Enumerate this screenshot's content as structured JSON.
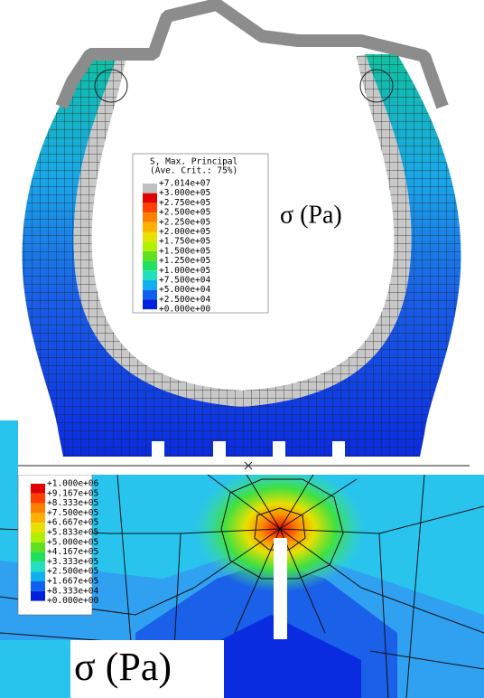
{
  "legend_top": {
    "title": [
      "S, Max. Principal",
      "(Ave. Crit.: 75%)"
    ],
    "labels": [
      "+7.014e+07",
      "+3.000e+05",
      "+2.750e+05",
      "+2.500e+05",
      "+2.250e+05",
      "+2.000e+05",
      "+1.750e+05",
      "+1.500e+05",
      "+1.250e+05",
      "+1.000e+05",
      "+7.500e+04",
      "+5.000e+04",
      "+2.500e+04",
      "+0.000e+00"
    ]
  },
  "unit_top": "σ (Pa)",
  "legend_bottom": {
    "labels": [
      "+1.000e+06",
      "+9.167e+05",
      "+8.333e+05",
      "+7.500e+05",
      "+6.667e+05",
      "+5.833e+05",
      "+5.000e+05",
      "+4.167e+05",
      "+3.333e+05",
      "+2.500e+05",
      "+1.667e+05",
      "+8.333e+04",
      "+0.000e+00"
    ]
  },
  "unit_bottom": "σ (Pa)"
}
